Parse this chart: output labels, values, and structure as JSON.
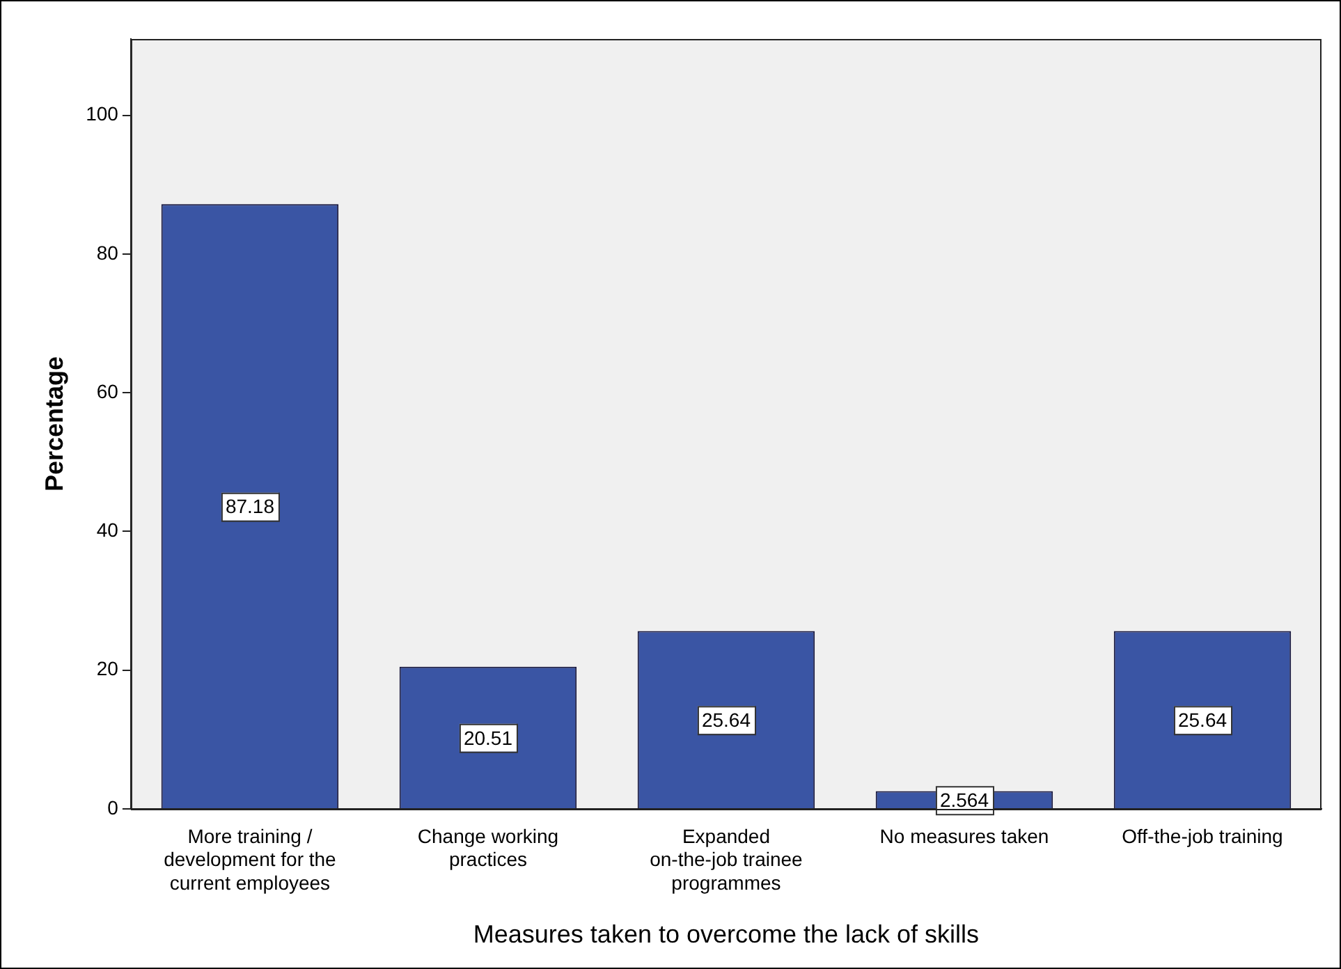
{
  "chart_data": {
    "type": "bar",
    "xlabel": "Measures taken to overcome the lack of skills",
    "ylabel": "Percentage",
    "categories": [
      "More training / development for the current employees",
      "Change working practices",
      "Expanded on-the-job trainee programmes",
      "No measures taken",
      "Off-the-job training"
    ],
    "values": [
      87.18,
      20.51,
      25.64,
      2.564,
      25.64
    ],
    "color": "#3a55a4",
    "ylim": [
      0,
      111
    ],
    "yticks": [
      0,
      20,
      40,
      60,
      80,
      100
    ],
    "data_labels": true
  }
}
